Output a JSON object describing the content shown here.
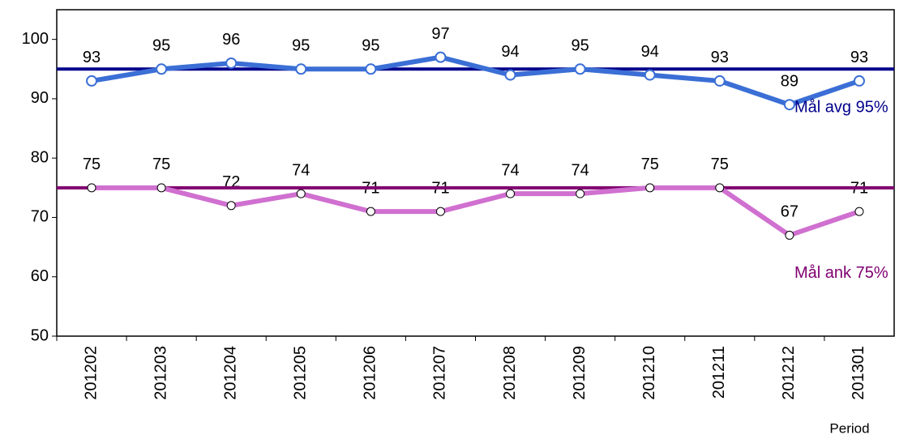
{
  "chart_data": {
    "type": "line",
    "categories": [
      "201202",
      "201203",
      "201204",
      "201205",
      "201206",
      "201207",
      "201208",
      "201209",
      "201210",
      "201211",
      "201212",
      "201301"
    ],
    "series": [
      {
        "name": "avg",
        "color": "#3b6fd6",
        "values": [
          93,
          95,
          96,
          95,
          95,
          97,
          94,
          95,
          94,
          93,
          89,
          93
        ]
      },
      {
        "name": "ank",
        "color": "#d070d0",
        "values": [
          75,
          75,
          72,
          74,
          71,
          71,
          74,
          74,
          75,
          75,
          67,
          71
        ]
      }
    ],
    "reference_lines": [
      {
        "label": "Mål avg 95%",
        "value": 95,
        "color": "#00008b"
      },
      {
        "label": "Mål ank 75%",
        "value": 75,
        "color": "#800070"
      }
    ],
    "x_label": "Period",
    "ylim": [
      50,
      105
    ],
    "yticks": [
      50,
      60,
      70,
      80,
      90,
      100
    ],
    "grid": false
  }
}
